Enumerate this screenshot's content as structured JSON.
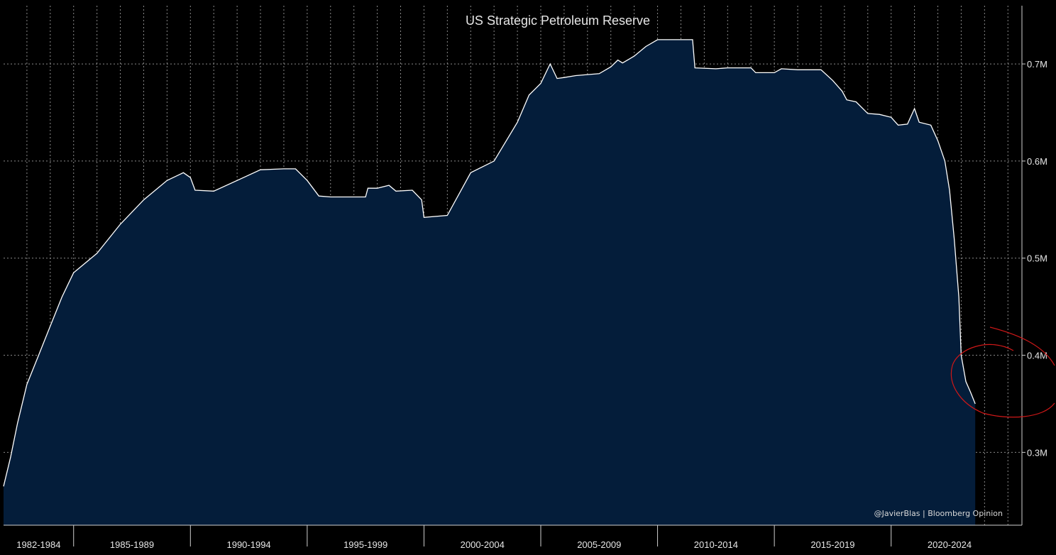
{
  "chart_data": {
    "type": "area",
    "title": "US Strategic Petroleum Reserve",
    "credit": "@JavierBlas | Bloomberg Opinion",
    "xlabel": "",
    "ylabel": "",
    "xlim": [
      1982.0,
      2025.6
    ],
    "ylim": [
      0.225,
      0.76
    ],
    "grid": true,
    "y_axis_position": "right",
    "y_ticks": [
      {
        "value": 0.3,
        "label": "0.3M"
      },
      {
        "value": 0.4,
        "label": "0.4M"
      },
      {
        "value": 0.5,
        "label": "0.5M"
      },
      {
        "value": 0.6,
        "label": "0.6M"
      },
      {
        "value": 0.7,
        "label": "0.7M"
      }
    ],
    "x_periods": [
      {
        "label": "1982-1984",
        "start": 1982.0,
        "end": 1985.0
      },
      {
        "label": "1985-1989",
        "start": 1985.0,
        "end": 1990.0
      },
      {
        "label": "1990-1994",
        "start": 1990.0,
        "end": 1995.0
      },
      {
        "label": "1995-1999",
        "start": 1995.0,
        "end": 2000.0
      },
      {
        "label": "2000-2004",
        "start": 2000.0,
        "end": 2005.0
      },
      {
        "label": "2005-2009",
        "start": 2005.0,
        "end": 2010.0
      },
      {
        "label": "2010-2014",
        "start": 2010.0,
        "end": 2015.0
      },
      {
        "label": "2015-2019",
        "start": 2015.0,
        "end": 2020.0
      },
      {
        "label": "2020-2024",
        "start": 2020.0,
        "end": 2025.0
      }
    ],
    "x_gridlines": [
      1983,
      1984,
      1985,
      1986,
      1987,
      1988,
      1989,
      1990,
      1991,
      1992,
      1993,
      1994,
      1995,
      1996,
      1997,
      1998,
      1999,
      2000,
      2001,
      2002,
      2003,
      2004,
      2005,
      2006,
      2007,
      2008,
      2009,
      2010,
      2011,
      2012,
      2013,
      2014,
      2015,
      2016,
      2017,
      2018,
      2019,
      2020,
      2021,
      2022,
      2023,
      2024,
      2025
    ],
    "series": [
      {
        "values": [
          [
            1982.0,
            0.265
          ],
          [
            1982.3,
            0.295
          ],
          [
            1982.6,
            0.33
          ],
          [
            1983.0,
            0.37
          ],
          [
            1983.5,
            0.4
          ],
          [
            1984.0,
            0.43
          ],
          [
            1984.5,
            0.46
          ],
          [
            1985.0,
            0.485
          ],
          [
            1986.0,
            0.505
          ],
          [
            1987.0,
            0.535
          ],
          [
            1988.0,
            0.56
          ],
          [
            1989.0,
            0.58
          ],
          [
            1989.7,
            0.588
          ],
          [
            1990.0,
            0.583
          ],
          [
            1990.2,
            0.57
          ],
          [
            1991.0,
            0.569
          ],
          [
            1992.0,
            0.58
          ],
          [
            1993.0,
            0.591
          ],
          [
            1994.0,
            0.592
          ],
          [
            1994.5,
            0.592
          ],
          [
            1995.0,
            0.58
          ],
          [
            1995.5,
            0.564
          ],
          [
            1996.0,
            0.563
          ],
          [
            1997.0,
            0.563
          ],
          [
            1997.5,
            0.563
          ],
          [
            1997.6,
            0.572
          ],
          [
            1998.0,
            0.572
          ],
          [
            1998.5,
            0.575
          ],
          [
            1998.8,
            0.569
          ],
          [
            1999.5,
            0.57
          ],
          [
            1999.9,
            0.56
          ],
          [
            2000.0,
            0.542
          ],
          [
            2001.0,
            0.544
          ],
          [
            2002.0,
            0.588
          ],
          [
            2003.0,
            0.6
          ],
          [
            2004.0,
            0.64
          ],
          [
            2004.5,
            0.668
          ],
          [
            2005.0,
            0.68
          ],
          [
            2005.3,
            0.695
          ],
          [
            2005.4,
            0.7
          ],
          [
            2005.7,
            0.685
          ],
          [
            2006.0,
            0.686
          ],
          [
            2006.5,
            0.688
          ],
          [
            2007.0,
            0.689
          ],
          [
            2007.5,
            0.69
          ],
          [
            2008.0,
            0.697
          ],
          [
            2008.3,
            0.704
          ],
          [
            2008.5,
            0.701
          ],
          [
            2009.0,
            0.708
          ],
          [
            2009.5,
            0.718
          ],
          [
            2010.0,
            0.725
          ],
          [
            2011.0,
            0.725
          ],
          [
            2011.5,
            0.725
          ],
          [
            2011.6,
            0.696
          ],
          [
            2012.5,
            0.695
          ],
          [
            2013.0,
            0.696
          ],
          [
            2014.0,
            0.696
          ],
          [
            2014.2,
            0.691
          ],
          [
            2015.0,
            0.691
          ],
          [
            2015.3,
            0.695
          ],
          [
            2016.0,
            0.694
          ],
          [
            2017.0,
            0.694
          ],
          [
            2017.5,
            0.683
          ],
          [
            2017.9,
            0.672
          ],
          [
            2018.1,
            0.663
          ],
          [
            2018.5,
            0.661
          ],
          [
            2019.0,
            0.649
          ],
          [
            2019.5,
            0.648
          ],
          [
            2020.0,
            0.645
          ],
          [
            2020.3,
            0.637
          ],
          [
            2020.7,
            0.638
          ],
          [
            2021.0,
            0.654
          ],
          [
            2021.2,
            0.64
          ],
          [
            2021.7,
            0.637
          ],
          [
            2022.0,
            0.621
          ],
          [
            2022.3,
            0.6
          ],
          [
            2022.5,
            0.57
          ],
          [
            2022.7,
            0.52
          ],
          [
            2022.9,
            0.46
          ],
          [
            2023.0,
            0.4
          ],
          [
            2023.2,
            0.373
          ],
          [
            2023.4,
            0.362
          ],
          [
            2023.6,
            0.35
          ]
        ]
      }
    ]
  }
}
